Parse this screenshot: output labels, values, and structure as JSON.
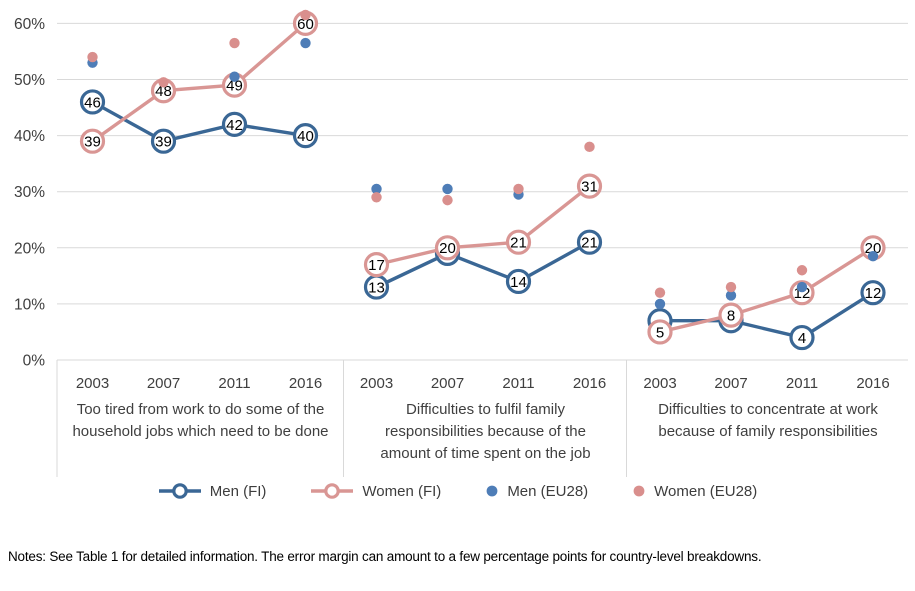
{
  "chart_data": {
    "type": "line",
    "title": "",
    "y_ticks": [
      "0%",
      "10%",
      "20%",
      "30%",
      "40%",
      "50%",
      "60%"
    ],
    "ylim": [
      0,
      62
    ],
    "grid": true,
    "years": [
      "2003",
      "2007",
      "2011",
      "2016"
    ],
    "series_meta": [
      {
        "id": "men_fi",
        "label": "Men (FI)",
        "color": "#3A6795",
        "style": "line-open-circle"
      },
      {
        "id": "women_fi",
        "label": "Women (FI)",
        "color": "#D99694",
        "style": "line-open-circle"
      },
      {
        "id": "men_eu28",
        "label": "Men (EU28)",
        "color": "#4E7DB7",
        "style": "dot"
      },
      {
        "id": "women_eu28",
        "label": "Women (EU28)",
        "color": "#D98F8D",
        "style": "dot"
      }
    ],
    "panels": [
      {
        "category": "Too tired from work to do some of the household jobs which need to be done",
        "men_fi": [
          46,
          39,
          42,
          40
        ],
        "men_fi_labels": [
          "46",
          "39",
          "42",
          "40"
        ],
        "women_fi": [
          39,
          48,
          49,
          60
        ],
        "women_fi_labels": [
          "39",
          "48",
          "49",
          "60"
        ],
        "men_eu28": [
          53,
          null,
          50.5,
          56.5
        ],
        "women_eu28": [
          54,
          49.5,
          56.5,
          61.5
        ]
      },
      {
        "category": "Difficulties to fulfil family responsibilities because of the amount of time spent on the job",
        "men_fi": [
          13,
          19,
          14,
          21
        ],
        "men_fi_labels": [
          "13",
          null,
          "14",
          "21"
        ],
        "women_fi": [
          17,
          20,
          21,
          31
        ],
        "women_fi_labels": [
          "17",
          "20",
          "21",
          "31"
        ],
        "men_eu28": [
          30.5,
          30.5,
          29.5,
          null
        ],
        "women_eu28": [
          29,
          28.5,
          30.5,
          38
        ]
      },
      {
        "category": "Difficulties to concentrate at work because of family responsibilities",
        "men_fi": [
          7,
          7,
          4,
          12
        ],
        "men_fi_labels": [
          null,
          null,
          "4",
          "12"
        ],
        "women_fi": [
          5,
          8,
          12,
          20
        ],
        "women_fi_labels": [
          "5",
          "8",
          "12",
          "20"
        ],
        "men_eu28": [
          10,
          11.5,
          13,
          18.5
        ],
        "women_eu28": [
          12,
          13,
          16,
          null
        ]
      }
    ],
    "colors": {
      "gridline": "#D9D9D9",
      "axis_text": "#3f3f3f",
      "data_label": "#000000"
    }
  },
  "notes": "Notes: See Table 1 for detailed information. The error margin can amount to a few percentage points for country-level breakdowns."
}
